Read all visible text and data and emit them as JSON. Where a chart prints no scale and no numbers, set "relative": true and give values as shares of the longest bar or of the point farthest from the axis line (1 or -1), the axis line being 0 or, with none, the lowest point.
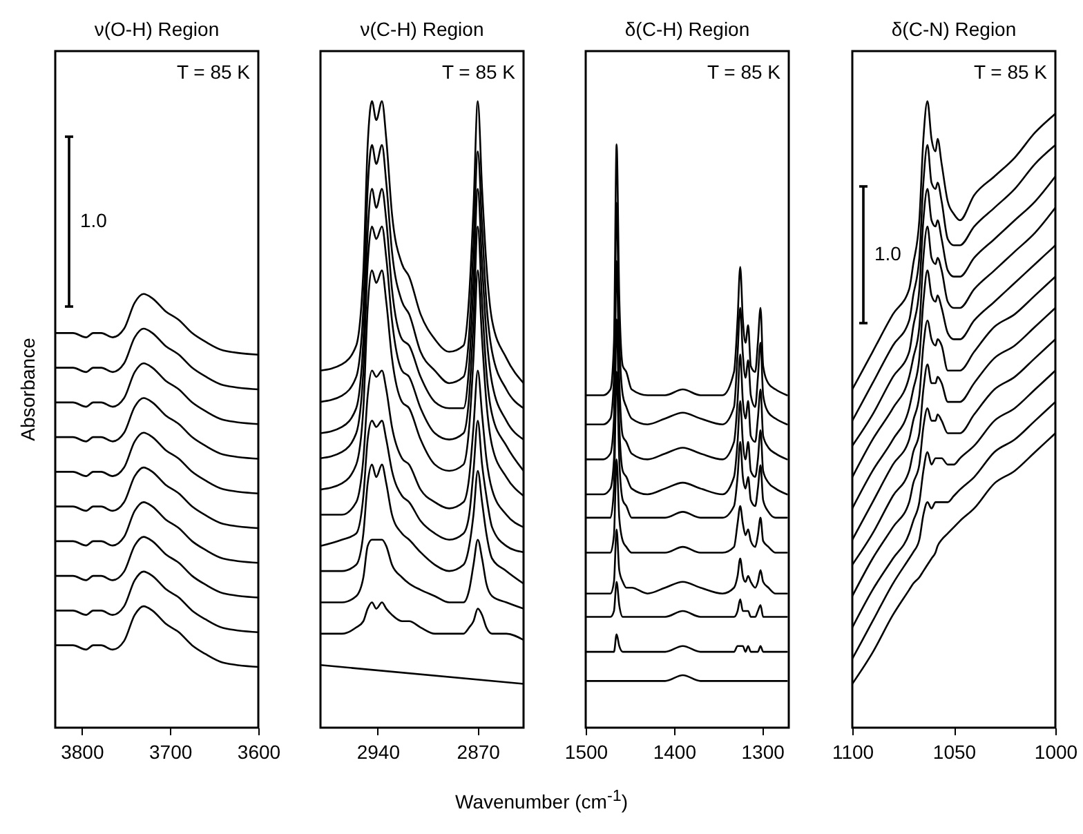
{
  "chart_data": [
    {
      "type": "line",
      "title": "ν(O-H) Region",
      "ylabel": "Absorbance",
      "relative": true,
      "tick_labels": "x",
      "annotations": [
        "T = 85 K",
        "1.0"
      ],
      "xlim": [
        3830,
        3600
      ],
      "xticks": [
        3800,
        3700,
        3600
      ],
      "x": [
        3830,
        3810,
        3795,
        3787,
        3778,
        3765,
        3752,
        3740,
        3730,
        3720,
        3705,
        3690,
        3675,
        3660,
        3640,
        3600
      ],
      "series": [
        {
          "color": "#000000",
          "values": [
            0.91,
            0.91,
            0.9,
            0.91,
            0.91,
            0.9,
            0.92,
            0.98,
            1,
            0.99,
            0.96,
            0.94,
            0.91,
            0.89,
            0.87,
            0.86
          ]
        },
        {
          "color": "#000000",
          "values": [
            0.83,
            0.83,
            0.82,
            0.83,
            0.83,
            0.82,
            0.84,
            0.9,
            0.92,
            0.91,
            0.88,
            0.86,
            0.83,
            0.81,
            0.79,
            0.78
          ]
        },
        {
          "color": "#000000",
          "values": [
            0.75,
            0.75,
            0.74,
            0.75,
            0.75,
            0.74,
            0.76,
            0.82,
            0.84,
            0.83,
            0.8,
            0.78,
            0.75,
            0.73,
            0.71,
            0.7
          ]
        },
        {
          "color": "#000000",
          "values": [
            0.67,
            0.67,
            0.66,
            0.67,
            0.67,
            0.66,
            0.68,
            0.74,
            0.76,
            0.75,
            0.72,
            0.7,
            0.67,
            0.65,
            0.63,
            0.62
          ]
        },
        {
          "color": "#000000",
          "values": [
            0.59,
            0.59,
            0.58,
            0.59,
            0.59,
            0.58,
            0.6,
            0.66,
            0.68,
            0.67,
            0.64,
            0.62,
            0.59,
            0.57,
            0.55,
            0.54
          ]
        },
        {
          "color": "#000000",
          "values": [
            0.51,
            0.51,
            0.5,
            0.51,
            0.51,
            0.5,
            0.52,
            0.58,
            0.6,
            0.59,
            0.56,
            0.54,
            0.51,
            0.49,
            0.47,
            0.46
          ]
        },
        {
          "color": "#000000",
          "values": [
            0.43,
            0.43,
            0.42,
            0.43,
            0.43,
            0.42,
            0.44,
            0.5,
            0.52,
            0.51,
            0.48,
            0.46,
            0.43,
            0.41,
            0.39,
            0.38
          ]
        },
        {
          "color": "#000000",
          "values": [
            0.35,
            0.35,
            0.34,
            0.35,
            0.35,
            0.34,
            0.36,
            0.42,
            0.44,
            0.43,
            0.4,
            0.38,
            0.35,
            0.33,
            0.31,
            0.3
          ]
        },
        {
          "color": "#000000",
          "values": [
            0.27,
            0.27,
            0.26,
            0.27,
            0.27,
            0.26,
            0.28,
            0.34,
            0.36,
            0.35,
            0.32,
            0.3,
            0.27,
            0.25,
            0.23,
            0.22
          ]
        },
        {
          "color": "#000000",
          "values": [
            0.19,
            0.19,
            0.18,
            0.19,
            0.19,
            0.18,
            0.2,
            0.26,
            0.28,
            0.27,
            0.24,
            0.22,
            0.19,
            0.17,
            0.15,
            0.14
          ]
        }
      ]
    },
    {
      "type": "line",
      "title": "ν(C-H) Region",
      "xlabel": "Wavenumber (cm$^{-1}$)",
      "relative": true,
      "tick_labels": "x",
      "annotations": [
        "T = 85 K"
      ],
      "xlim": [
        2980,
        2838
      ],
      "xticks": [
        2940,
        2870
      ],
      "x": [
        2980,
        2965,
        2955,
        2950,
        2947,
        2944,
        2941,
        2937,
        2934,
        2930,
        2923,
        2918,
        2910,
        2900,
        2890,
        2880,
        2876,
        2873,
        2870,
        2867,
        2864,
        2860,
        2850,
        2838
      ],
      "series": [
        {
          "color": "#000000",
          "values": [
            0.57,
            0.58,
            0.61,
            0.73,
            0.93,
            1,
            0.97,
            1,
            0.94,
            0.82,
            0.74,
            0.72,
            0.66,
            0.62,
            0.6,
            0.61,
            0.69,
            0.83,
            1,
            0.86,
            0.74,
            0.65,
            0.59,
            0.55
          ]
        },
        {
          "color": "#000000",
          "values": [
            0.52,
            0.53,
            0.56,
            0.67,
            0.86,
            0.93,
            0.9,
            0.93,
            0.87,
            0.76,
            0.68,
            0.66,
            0.6,
            0.57,
            0.55,
            0.56,
            0.63,
            0.77,
            0.92,
            0.8,
            0.68,
            0.6,
            0.54,
            0.51
          ]
        },
        {
          "color": "#000000",
          "values": [
            0.47,
            0.48,
            0.51,
            0.62,
            0.79,
            0.86,
            0.83,
            0.86,
            0.81,
            0.7,
            0.62,
            0.61,
            0.56,
            0.52,
            0.51,
            0.51,
            0.58,
            0.71,
            0.86,
            0.74,
            0.63,
            0.55,
            0.49,
            0.46
          ]
        },
        {
          "color": "#000000",
          "values": [
            0.43,
            0.44,
            0.47,
            0.57,
            0.74,
            0.8,
            0.78,
            0.8,
            0.75,
            0.65,
            0.57,
            0.56,
            0.51,
            0.47,
            0.46,
            0.47,
            0.53,
            0.65,
            0.8,
            0.68,
            0.57,
            0.5,
            0.45,
            0.41
          ]
        },
        {
          "color": "#000000",
          "values": [
            0.38,
            0.39,
            0.42,
            0.51,
            0.67,
            0.73,
            0.71,
            0.73,
            0.68,
            0.59,
            0.52,
            0.51,
            0.46,
            0.42,
            0.41,
            0.42,
            0.48,
            0.59,
            0.73,
            0.62,
            0.52,
            0.45,
            0.4,
            0.37
          ]
        },
        {
          "color": "#000000",
          "values": [
            0.34,
            0.34,
            0.36,
            0.43,
            0.53,
            0.57,
            0.56,
            0.57,
            0.54,
            0.48,
            0.43,
            0.42,
            0.38,
            0.36,
            0.35,
            0.36,
            0.4,
            0.48,
            0.57,
            0.5,
            0.43,
            0.38,
            0.34,
            0.32
          ]
        },
        {
          "color": "#000000",
          "values": [
            0.29,
            0.3,
            0.31,
            0.37,
            0.46,
            0.49,
            0.48,
            0.49,
            0.46,
            0.41,
            0.37,
            0.36,
            0.33,
            0.31,
            0.3,
            0.31,
            0.34,
            0.41,
            0.49,
            0.42,
            0.37,
            0.32,
            0.29,
            0.28
          ]
        },
        {
          "color": "#000000",
          "values": [
            0.25,
            0.25,
            0.26,
            0.31,
            0.39,
            0.42,
            0.4,
            0.42,
            0.39,
            0.34,
            0.31,
            0.3,
            0.28,
            0.26,
            0.25,
            0.26,
            0.29,
            0.34,
            0.41,
            0.36,
            0.31,
            0.27,
            0.25,
            0.23
          ]
        },
        {
          "color": "#000000",
          "values": [
            0.2,
            0.2,
            0.21,
            0.24,
            0.29,
            0.3,
            0.3,
            0.3,
            0.29,
            0.26,
            0.24,
            0.23,
            0.22,
            0.21,
            0.2,
            0.2,
            0.22,
            0.26,
            0.3,
            0.27,
            0.23,
            0.21,
            0.2,
            0.19
          ]
        },
        {
          "color": "#000000",
          "values": [
            0.15,
            0.15,
            0.16,
            0.17,
            0.19,
            0.2,
            0.19,
            0.2,
            0.19,
            0.18,
            0.17,
            0.17,
            0.16,
            0.15,
            0.15,
            0.15,
            0.16,
            0.17,
            0.19,
            0.18,
            0.16,
            0.15,
            0.15,
            0.14
          ]
        },
        {
          "color": "#000000",
          "x": [
            2980,
            2838
          ],
          "values": [
            0.1,
            0.07
          ]
        }
      ]
    },
    {
      "type": "line",
      "title": "δ(C-H) Region",
      "relative": true,
      "tick_labels": "x",
      "annotations": [
        "T = 85 K"
      ],
      "xlim": [
        1500,
        1270
      ],
      "xticks": [
        1500,
        1400,
        1300
      ],
      "x": [
        1500,
        1480,
        1472,
        1468,
        1465,
        1462,
        1458,
        1454,
        1448,
        1430,
        1410,
        1390,
        1370,
        1345,
        1332,
        1328,
        1325,
        1322,
        1319,
        1316,
        1313,
        1308,
        1305,
        1302,
        1299,
        1293,
        1285,
        1272
      ],
      "series": [
        {
          "color": "#000000",
          "values": [
            0.57,
            0.57,
            0.58,
            0.66,
            1,
            0.74,
            0.62,
            0.61,
            0.58,
            0.57,
            0.57,
            0.58,
            0.57,
            0.57,
            0.61,
            0.7,
            0.79,
            0.7,
            0.66,
            0.69,
            0.62,
            0.61,
            0.66,
            0.72,
            0.62,
            0.59,
            0.58,
            0.57
          ]
        },
        {
          "color": "#000000",
          "values": [
            0.52,
            0.52,
            0.53,
            0.6,
            0.9,
            0.67,
            0.57,
            0.55,
            0.53,
            0.52,
            0.53,
            0.54,
            0.53,
            0.52,
            0.55,
            0.64,
            0.72,
            0.64,
            0.6,
            0.63,
            0.57,
            0.55,
            0.6,
            0.66,
            0.57,
            0.54,
            0.53,
            0.52
          ]
        },
        {
          "color": "#000000",
          "values": [
            0.46,
            0.46,
            0.47,
            0.53,
            0.8,
            0.6,
            0.5,
            0.49,
            0.47,
            0.46,
            0.47,
            0.48,
            0.47,
            0.46,
            0.49,
            0.56,
            0.64,
            0.56,
            0.53,
            0.56,
            0.5,
            0.49,
            0.53,
            0.58,
            0.5,
            0.48,
            0.47,
            0.46
          ]
        },
        {
          "color": "#000000",
          "values": [
            0.4,
            0.4,
            0.41,
            0.46,
            0.7,
            0.52,
            0.44,
            0.43,
            0.41,
            0.4,
            0.41,
            0.42,
            0.41,
            0.4,
            0.43,
            0.49,
            0.56,
            0.49,
            0.46,
            0.49,
            0.44,
            0.43,
            0.46,
            0.51,
            0.44,
            0.42,
            0.41,
            0.4
          ]
        },
        {
          "color": "#000000",
          "values": [
            0.36,
            0.36,
            0.36,
            0.41,
            0.61,
            0.46,
            0.39,
            0.38,
            0.36,
            0.36,
            0.36,
            0.37,
            0.36,
            0.36,
            0.38,
            0.43,
            0.49,
            0.43,
            0.41,
            0.43,
            0.39,
            0.38,
            0.41,
            0.45,
            0.39,
            0.37,
            0.36,
            0.36
          ]
        },
        {
          "color": "#000000",
          "values": [
            0.3,
            0.3,
            0.3,
            0.33,
            0.46,
            0.36,
            0.32,
            0.31,
            0.3,
            0.3,
            0.3,
            0.31,
            0.3,
            0.3,
            0.31,
            0.35,
            0.38,
            0.35,
            0.33,
            0.34,
            0.32,
            0.31,
            0.33,
            0.36,
            0.32,
            0.31,
            0.3,
            0.3
          ]
        },
        {
          "color": "#000000",
          "values": [
            0.23,
            0.23,
            0.23,
            0.25,
            0.34,
            0.27,
            0.25,
            0.24,
            0.24,
            0.23,
            0.24,
            0.25,
            0.24,
            0.23,
            0.24,
            0.26,
            0.29,
            0.26,
            0.25,
            0.26,
            0.25,
            0.24,
            0.25,
            0.27,
            0.25,
            0.24,
            0.23,
            0.23
          ]
        },
        {
          "color": "#000000",
          "values": [
            0.19,
            0.19,
            0.19,
            0.2,
            0.25,
            0.21,
            0.19,
            0.19,
            0.19,
            0.19,
            0.19,
            0.2,
            0.19,
            0.19,
            0.19,
            0.2,
            0.22,
            0.2,
            0.2,
            0.2,
            0.19,
            0.19,
            0.2,
            0.21,
            0.19,
            0.19,
            0.19,
            0.19
          ]
        },
        {
          "color": "#000000",
          "values": [
            0.13,
            0.13,
            0.13,
            0.13,
            0.16,
            0.14,
            0.13,
            0.13,
            0.13,
            0.13,
            0.13,
            0.14,
            0.13,
            0.13,
            0.13,
            0.14,
            0.14,
            0.14,
            0.13,
            0.14,
            0.13,
            0.13,
            0.13,
            0.14,
            0.13,
            0.13,
            0.13,
            0.13
          ]
        },
        {
          "color": "#000000",
          "values": [
            0.08,
            0.08,
            0.08,
            0.08,
            0.08,
            0.08,
            0.08,
            0.08,
            0.08,
            0.08,
            0.08,
            0.09,
            0.08,
            0.08,
            0.08,
            0.08,
            0.08,
            0.08,
            0.08,
            0.08,
            0.08,
            0.08,
            0.08,
            0.08,
            0.08,
            0.08,
            0.08,
            0.08
          ]
        }
      ]
    },
    {
      "type": "line",
      "title": "δ(C-N) Region",
      "relative": true,
      "tick_labels": "x",
      "annotations": [
        "T = 85 K",
        "1.0"
      ],
      "xlim": [
        1100,
        1000
      ],
      "xticks": [
        1100,
        1050,
        1000
      ],
      "x": [
        1100,
        1090,
        1080,
        1072,
        1070,
        1067,
        1065,
        1063,
        1061,
        1059,
        1058,
        1056,
        1053,
        1050,
        1047,
        1040,
        1030,
        1020,
        1010,
        1000
      ],
      "series": [
        {
          "color": "#000000",
          "values": [
            0.54,
            0.6,
            0.66,
            0.7,
            0.74,
            0.81,
            0.94,
            1,
            0.94,
            0.92,
            0.94,
            0.9,
            0.84,
            0.82,
            0.81,
            0.85,
            0.88,
            0.91,
            0.95,
            0.98
          ]
        },
        {
          "color": "#000000",
          "values": [
            0.49,
            0.55,
            0.61,
            0.65,
            0.69,
            0.75,
            0.87,
            0.93,
            0.87,
            0.86,
            0.87,
            0.84,
            0.78,
            0.77,
            0.77,
            0.8,
            0.83,
            0.86,
            0.9,
            0.93
          ]
        },
        {
          "color": "#000000",
          "values": [
            0.45,
            0.5,
            0.56,
            0.6,
            0.64,
            0.7,
            0.81,
            0.86,
            0.81,
            0.8,
            0.81,
            0.78,
            0.73,
            0.72,
            0.72,
            0.75,
            0.78,
            0.81,
            0.84,
            0.88
          ]
        },
        {
          "color": "#000000",
          "values": [
            0.4,
            0.46,
            0.51,
            0.56,
            0.59,
            0.64,
            0.75,
            0.8,
            0.75,
            0.74,
            0.75,
            0.73,
            0.68,
            0.67,
            0.67,
            0.7,
            0.73,
            0.76,
            0.79,
            0.83
          ]
        },
        {
          "color": "#000000",
          "values": [
            0.35,
            0.41,
            0.46,
            0.51,
            0.54,
            0.59,
            0.68,
            0.73,
            0.69,
            0.68,
            0.69,
            0.67,
            0.63,
            0.62,
            0.62,
            0.65,
            0.68,
            0.71,
            0.74,
            0.77
          ]
        },
        {
          "color": "#000000",
          "values": [
            0.3,
            0.36,
            0.42,
            0.46,
            0.49,
            0.53,
            0.61,
            0.65,
            0.62,
            0.61,
            0.62,
            0.61,
            0.57,
            0.57,
            0.57,
            0.6,
            0.64,
            0.66,
            0.69,
            0.72
          ]
        },
        {
          "color": "#000000",
          "values": [
            0.26,
            0.31,
            0.37,
            0.41,
            0.44,
            0.47,
            0.54,
            0.58,
            0.55,
            0.55,
            0.56,
            0.55,
            0.52,
            0.52,
            0.52,
            0.55,
            0.59,
            0.61,
            0.64,
            0.67
          ]
        },
        {
          "color": "#000000",
          "values": [
            0.21,
            0.27,
            0.32,
            0.36,
            0.39,
            0.42,
            0.48,
            0.51,
            0.49,
            0.49,
            0.5,
            0.49,
            0.47,
            0.47,
            0.47,
            0.5,
            0.54,
            0.56,
            0.59,
            0.62
          ]
        },
        {
          "color": "#000000",
          "values": [
            0.16,
            0.22,
            0.27,
            0.31,
            0.33,
            0.36,
            0.41,
            0.44,
            0.42,
            0.43,
            0.43,
            0.43,
            0.42,
            0.42,
            0.43,
            0.45,
            0.49,
            0.51,
            0.54,
            0.57
          ]
        },
        {
          "color": "#000000",
          "values": [
            0.11,
            0.17,
            0.23,
            0.27,
            0.28,
            0.3,
            0.34,
            0.36,
            0.35,
            0.36,
            0.36,
            0.36,
            0.36,
            0.37,
            0.38,
            0.4,
            0.44,
            0.46,
            0.49,
            0.52
          ]
        },
        {
          "color": "#000000",
          "values": [
            0.07,
            0.12,
            0.18,
            0.22,
            0.23,
            0.24,
            0.25,
            0.26,
            0.27,
            0.28,
            0.29,
            0.3,
            0.31,
            0.32,
            0.33,
            0.35,
            0.39,
            0.41,
            0.44,
            0.47
          ]
        }
      ]
    }
  ]
}
